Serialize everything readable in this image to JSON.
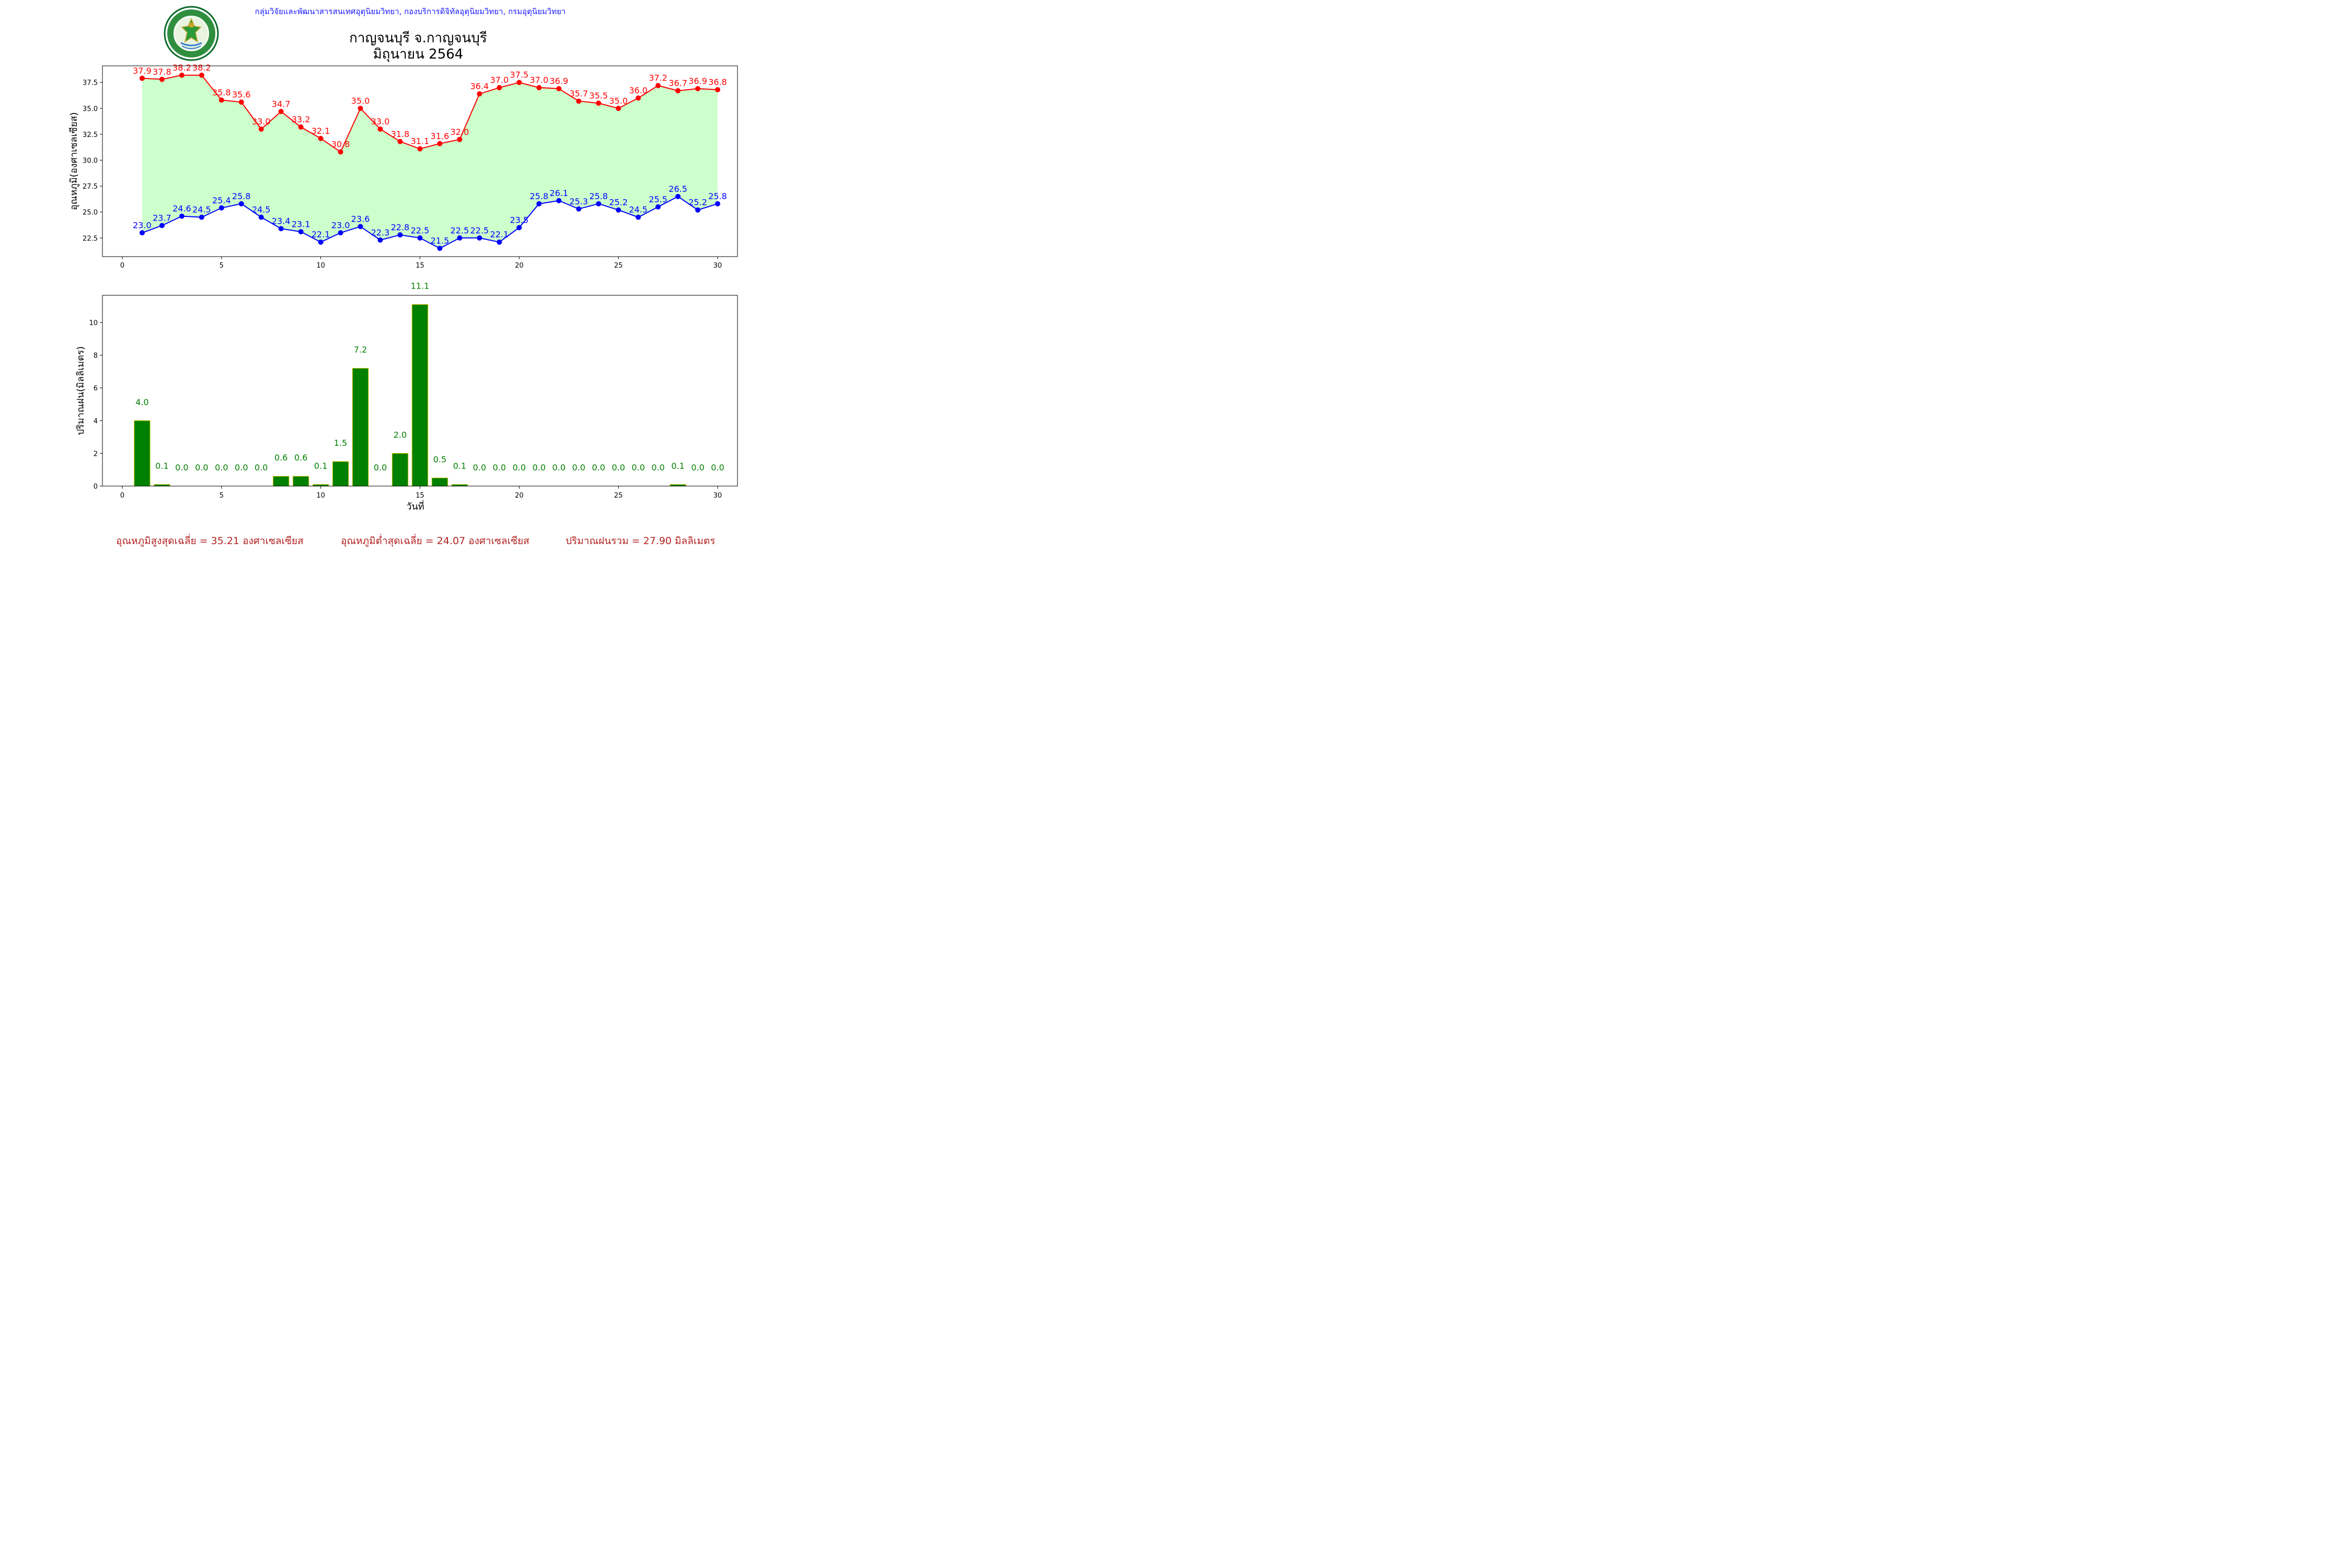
{
  "header": {
    "org_line": "กลุ่มวิจัยและพัฒนาสารสนเทศอุตุนิยมวิทยา, กองบริการดิจิทัลอุตุนิยมวิทยา, กรมอุตุนิยมวิทยา",
    "title_line1": "กาญจนบุรี จ.กาญจนบุรี",
    "title_line2": "มิถุนายน 2564",
    "logo_top_text": "กรมอุตุนิยมวิทยา",
    "logo_bottom_text": "METEOROLOGICAL DEPARTMENT"
  },
  "colors": {
    "max_line": "#ff0000",
    "min_line": "#0000ff",
    "fill": "#ccffcc",
    "bar": "#008000",
    "bar_edge": "#d4c200",
    "rain_label": "#008000",
    "footer": "#b22222",
    "header": "#1a1aff"
  },
  "chart_data": [
    {
      "type": "line",
      "ylabel": "อุณหภูมิ(องศาเซลเซียส)",
      "xlabel": "",
      "xlim": [
        -1,
        31
      ],
      "ylim": [
        20.7,
        39.1
      ],
      "xticks": [
        0,
        5,
        10,
        15,
        20,
        25,
        30
      ],
      "yticks": [
        22.5,
        25.0,
        27.5,
        30.0,
        32.5,
        35.0,
        37.5
      ],
      "x": [
        1,
        2,
        3,
        4,
        5,
        6,
        7,
        8,
        9,
        10,
        11,
        12,
        13,
        14,
        15,
        16,
        17,
        18,
        19,
        20,
        21,
        22,
        23,
        24,
        25,
        26,
        27,
        28,
        29,
        30
      ],
      "fill_between": true,
      "series": [
        {
          "name": "max",
          "values": [
            37.9,
            37.8,
            38.2,
            38.2,
            35.8,
            35.6,
            33.0,
            34.7,
            33.2,
            32.1,
            30.8,
            35.0,
            33.0,
            31.8,
            31.1,
            31.6,
            32.0,
            36.4,
            37.0,
            37.5,
            37.0,
            36.9,
            35.7,
            35.5,
            35.0,
            36.0,
            37.2,
            36.7,
            36.9,
            36.8
          ]
        },
        {
          "name": "min",
          "values": [
            23.0,
            23.7,
            24.6,
            24.5,
            25.4,
            25.8,
            24.5,
            23.4,
            23.1,
            22.1,
            23.0,
            23.6,
            22.3,
            22.8,
            22.5,
            21.5,
            22.5,
            22.5,
            22.1,
            23.5,
            25.8,
            26.1,
            25.3,
            25.8,
            25.2,
            24.5,
            25.5,
            26.5,
            25.2,
            25.8
          ]
        }
      ]
    },
    {
      "type": "bar",
      "ylabel": "ปริมาณฝน(มิลลิเมตร)",
      "xlabel": "วันที่",
      "xlim": [
        -1,
        31
      ],
      "ylim": [
        0,
        11.66
      ],
      "xticks": [
        0,
        5,
        10,
        15,
        20,
        25,
        30
      ],
      "yticks": [
        0,
        2,
        4,
        6,
        8,
        10
      ],
      "x": [
        1,
        2,
        3,
        4,
        5,
        6,
        7,
        8,
        9,
        10,
        11,
        12,
        13,
        14,
        15,
        16,
        17,
        18,
        19,
        20,
        21,
        22,
        23,
        24,
        25,
        26,
        27,
        28,
        29,
        30
      ],
      "values": [
        4.0,
        0.1,
        0.0,
        0.0,
        0.0,
        0.0,
        0.0,
        0.6,
        0.6,
        0.1,
        1.5,
        7.2,
        0.0,
        2.0,
        11.1,
        0.5,
        0.1,
        0.0,
        0.0,
        0.0,
        0.0,
        0.0,
        0.0,
        0.0,
        0.0,
        0.0,
        0.0,
        0.1,
        0.0,
        0.0
      ]
    }
  ],
  "footer": {
    "avg_max": "อุณหภูมิสูงสุดเฉลี่ย = 35.21 องศาเซลเซียส",
    "avg_min": "อุณหภูมิต่ำสุดเฉลี่ย = 24.07 องศาเซลเซียส",
    "total_rain": "ปริมาณฝนรวม = 27.90 มิลลิเมตร"
  }
}
